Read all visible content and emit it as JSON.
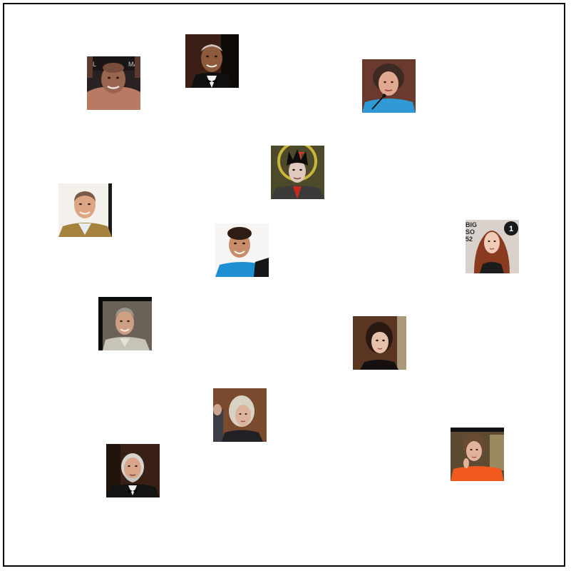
{
  "photos": [
    {
      "id": 1,
      "subject": "bald man in boxing ring, shirtless"
    },
    {
      "id": 2,
      "subject": "older man in tuxedo with bow tie"
    },
    {
      "id": 3,
      "subject": "woman with curly hair at microphone, blue top"
    },
    {
      "id": 4,
      "subject": "man with dark spiky hair, red shirt"
    },
    {
      "id": 5,
      "subject": "bald man smiling, patterned sweater"
    },
    {
      "id": 6,
      "subject": "young man with curly hair, blue shirt"
    },
    {
      "id": 7,
      "subject": "red-haired woman at awards backdrop"
    },
    {
      "id": 8,
      "subject": "older man with gray hair, light jacket"
    },
    {
      "id": 9,
      "subject": "young woman with dark hair pulled back"
    },
    {
      "id": 10,
      "subject": "woman with short gray hair, dark top"
    },
    {
      "id": 11,
      "subject": "woman with short brown hair, orange jacket"
    },
    {
      "id": 12,
      "subject": "man with gray hair and beard, tuxedo"
    }
  ],
  "colors": {
    "background": "#ffffff",
    "border": "#000000"
  }
}
